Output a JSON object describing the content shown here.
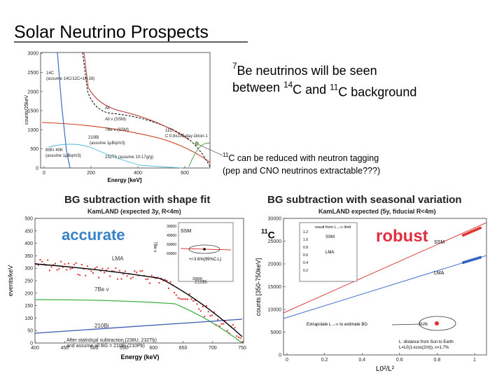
{
  "title": "Solar Neutrino Prospects",
  "statement": {
    "line1": [
      {
        "sup": "7"
      },
      {
        "text": "Be neutrinos will be seen"
      }
    ],
    "line2": [
      {
        "text": "between "
      },
      {
        "sup": "14"
      },
      {
        "text": "C and "
      },
      {
        "sup": "11"
      },
      {
        "text": "C background"
      }
    ]
  },
  "note": {
    "line1": [
      {
        "sup": "11"
      },
      {
        "text": "C can be reduced with neutron tagging"
      }
    ],
    "line2": [
      {
        "text": "(pep and CNO neutrinos extractable???)"
      }
    ]
  },
  "c11_label": [
    {
      "sup": "11"
    },
    {
      "text": "C"
    }
  ],
  "spectrum": {
    "y_label": "counts/25keV",
    "x_label": "Energy [keV]",
    "yticks": [
      "0",
      "500",
      "1000",
      "1500",
      "2000",
      "2500",
      "3000"
    ],
    "xticks": [
      "0",
      "200",
      "400",
      "600"
    ],
    "labels": [
      "14C",
      "(assume 14C/12C=10-18)",
      "All",
      "All ν (SSM)",
      "7Be ν (SSM)",
      "210Bi",
      "(assume 1μBq/m3)",
      "11C",
      "C:0.8x103 day-1kton-1",
      "85Kr  40K",
      "(assume 1μBq/m3)",
      "232Th (assume 10-17g/g)"
    ]
  },
  "shape_fit": {
    "title": "BG subtraction with shape fit",
    "subtitle": "KamLAND (expected 3y, R<4m)",
    "tag": "accurate",
    "y_label": "events/keV",
    "x_label": "Energy (keV)",
    "yticks": [
      "0",
      "50",
      "100",
      "150",
      "200",
      "250",
      "300",
      "350",
      "400",
      "450",
      "500"
    ],
    "xticks": [
      "400",
      "450",
      "500",
      "550",
      "600",
      "650",
      "700",
      "750"
    ],
    "labels": [
      "LMA",
      "7Be ν",
      "210Bi",
      "210Bi",
      "After statistical subtraction (238U, 232Th)",
      "and assume all BG = 210Bi (210Pb)"
    ],
    "inset": {
      "label": "SSM",
      "note": "+/-3.6%(99%C.L)",
      "yticks": [
        "30000",
        "40000",
        "50000",
        "60000"
      ],
      "xlabel": "20000",
      "ylabel": "7Be ν"
    }
  },
  "seasonal": {
    "title": "BG subtraction with seasonal variation",
    "subtitle": "KamLAND expected (5y, fiducial R<4m)",
    "tag": "robust",
    "y_label": "counts [350-750keV]",
    "x_label": "L0²/L²",
    "yticks": [
      "0",
      "5000",
      "10000",
      "15000",
      "20000",
      "25000",
      "30000"
    ],
    "xticks": [
      "0",
      "0.2",
      "0.4",
      "0.6",
      "0.8",
      "1"
    ],
    "labels": [
      "SSM",
      "LMA",
      "Extrapolate L→∞ to estimate BG",
      "SUN",
      "L: distance from Sun to Earth",
      "L=L0(1-εcos(2πt)),  ε=1.7%"
    ],
    "inset": {
      "title": "result from L→∞ limit",
      "labels": [
        "SSM",
        "LMA"
      ],
      "yticks": [
        "1.2",
        "1.0",
        "0.8",
        "0.6",
        "0.4",
        "0.2"
      ]
    }
  }
}
